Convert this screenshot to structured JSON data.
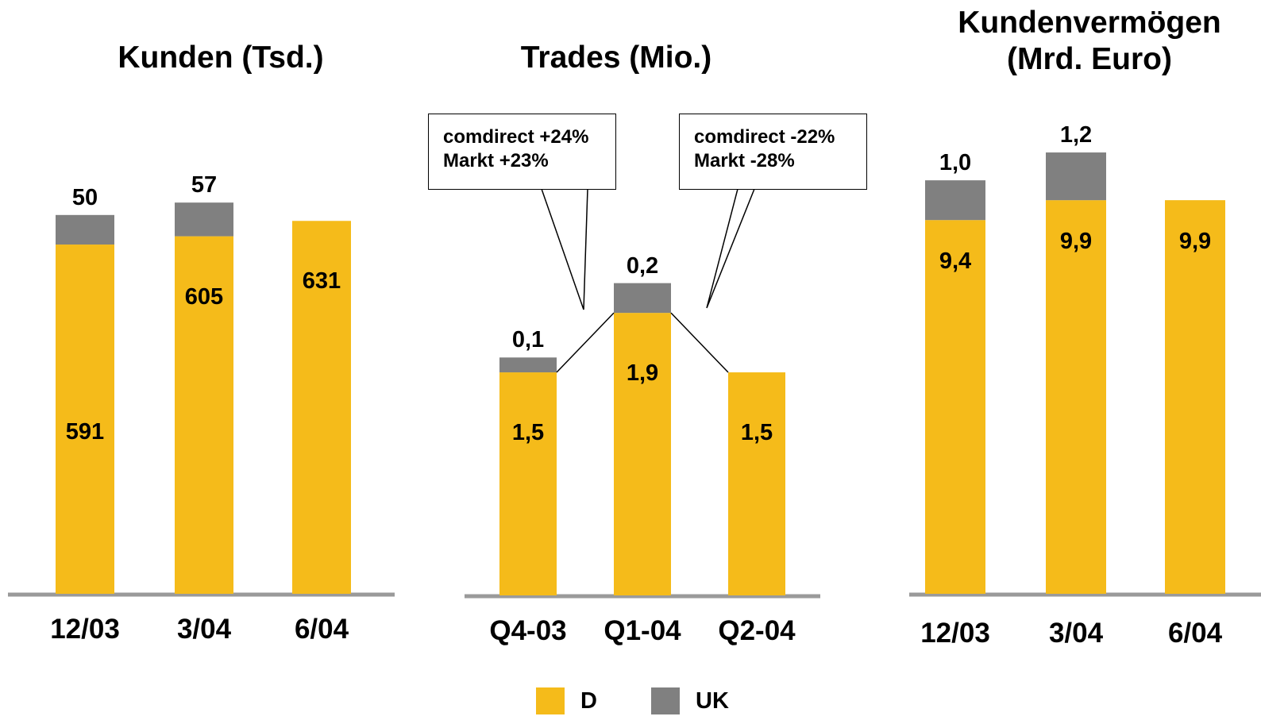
{
  "colors": {
    "D": "#f5bb1a",
    "UK": "#808080",
    "axis": "#9a9a9a"
  },
  "chart_data": [
    {
      "type": "bar",
      "stacked": true,
      "title": "Kunden (Tsd.)",
      "categories": [
        "12/03",
        "3/04",
        "6/04"
      ],
      "series": [
        {
          "name": "D",
          "values": [
            591,
            605,
            631
          ],
          "labels": [
            "591",
            "605",
            "631"
          ]
        },
        {
          "name": "UK",
          "values": [
            50,
            57,
            0
          ],
          "labels": [
            "50",
            "57",
            ""
          ]
        }
      ],
      "ylim": [
        0,
        720
      ]
    },
    {
      "type": "bar",
      "stacked": true,
      "title": "Trades (Mio.)",
      "categories": [
        "Q4-03",
        "Q1-04",
        "Q2-04"
      ],
      "series": [
        {
          "name": "D",
          "values": [
            1.5,
            1.9,
            1.5
          ],
          "labels": [
            "1,5",
            "1,9",
            "1,5"
          ]
        },
        {
          "name": "UK",
          "values": [
            0.1,
            0.2,
            0
          ],
          "labels": [
            "0,1",
            "0,2",
            ""
          ]
        }
      ],
      "ylim": [
        0,
        2.6
      ],
      "annotations": [
        {
          "lines": [
            "comdirect +24%",
            "Markt +23%"
          ]
        },
        {
          "lines": [
            "comdirect -22%",
            "Markt -28%"
          ]
        }
      ]
    },
    {
      "type": "bar",
      "stacked": true,
      "title": "Kundenvermögen (Mrd. Euro)",
      "title_lines": [
        "Kundenvermögen",
        "(Mrd. Euro)"
      ],
      "categories": [
        "12/03",
        "3/04",
        "6/04"
      ],
      "series": [
        {
          "name": "D",
          "values": [
            9.4,
            9.9,
            9.9
          ],
          "labels": [
            "9,4",
            "9,9",
            "9,9"
          ]
        },
        {
          "name": "UK",
          "values": [
            1.0,
            1.2,
            0
          ],
          "labels": [
            "1,0",
            "1,2",
            ""
          ]
        }
      ],
      "ylim": [
        0,
        11.8
      ]
    }
  ],
  "legend": [
    {
      "name": "D",
      "color": "#f5bb1a"
    },
    {
      "name": "UK",
      "color": "#808080"
    }
  ]
}
